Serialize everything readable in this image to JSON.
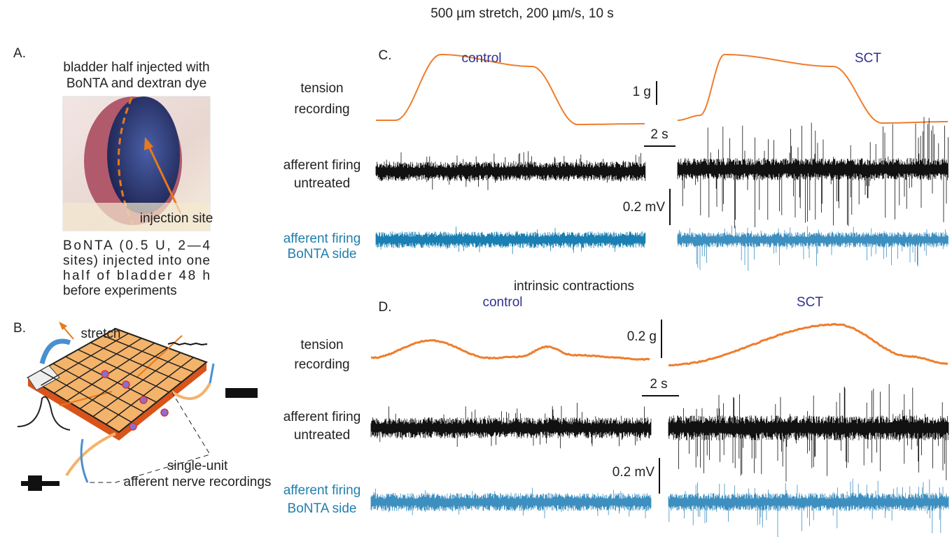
{
  "title": "500 µm stretch, 200 µm/s, 10 s",
  "panel_a": {
    "letter": "A.",
    "heading": [
      "bladder half injected with",
      "BoNTA and dextran dye"
    ],
    "photo_label": "injection site",
    "caption": [
      "BoNTA (0.5 U, 2—4",
      "sites) injected into one",
      "half of bladder 48 h",
      "before experiments"
    ]
  },
  "panel_b": {
    "letter": "B.",
    "arrow_label": "stretch",
    "caption": [
      "single-unit",
      "afferent nerve recordings"
    ]
  },
  "panel_c": {
    "letter": "C.",
    "conditions": [
      "control",
      "SCT"
    ],
    "rows": [
      {
        "label": [
          "tension",
          "recording"
        ]
      },
      {
        "label": [
          "afferent firing",
          "untreated"
        ]
      },
      {
        "label": [
          "afferent firing",
          "BoNTA side"
        ]
      }
    ],
    "scale_bars": {
      "tension": "1 g",
      "time": "2 s",
      "voltage": "0.2 mV"
    }
  },
  "intrinsic_heading": "intrinsic contractions",
  "panel_d": {
    "letter": "D.",
    "conditions": [
      "control",
      "SCT"
    ],
    "rows": [
      {
        "label": [
          "tension",
          "recording"
        ]
      },
      {
        "label": [
          "afferent firing",
          "untreated"
        ]
      },
      {
        "label": [
          "afferent firing",
          "BoNTA side"
        ]
      }
    ],
    "scale_bars": {
      "tension": "0.2 g",
      "time": "2 s",
      "voltage": "0.2 mV"
    }
  }
}
